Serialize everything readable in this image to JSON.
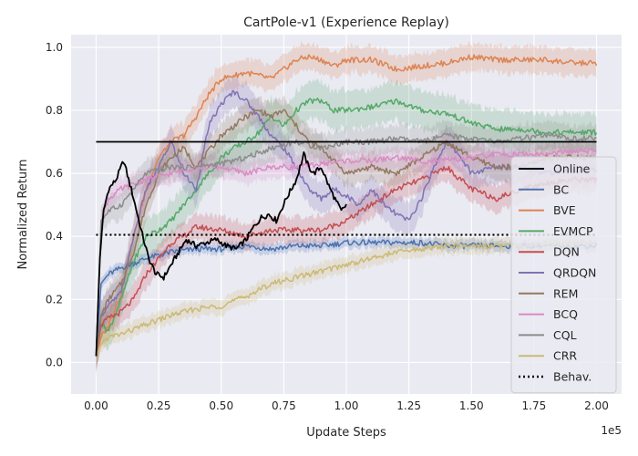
{
  "chart_data": {
    "type": "line",
    "title": "CartPole-v1 (Experience Replay)",
    "xlabel": "Update Steps",
    "ylabel": "Normalized Return",
    "x_offset_label": "1e5",
    "xlim": [
      -10000,
      210000
    ],
    "ylim": [
      -0.1,
      1.04
    ],
    "x_ticks": [
      0,
      25000,
      50000,
      75000,
      100000,
      125000,
      150000,
      175000,
      200000
    ],
    "x_tick_labels": [
      "0.00",
      "0.25",
      "0.50",
      "0.75",
      "1.00",
      "1.25",
      "1.50",
      "1.75",
      "2.00"
    ],
    "y_ticks": [
      0.0,
      0.2,
      0.4,
      0.6,
      0.8,
      1.0
    ],
    "y_tick_labels": [
      "0.0",
      "0.2",
      "0.4",
      "0.6",
      "0.8",
      "1.0"
    ],
    "grid": true,
    "legend_position": "center-right",
    "background": "#eaeaf2",
    "series": [
      {
        "name": "Online",
        "color": "#000000",
        "style": "solid",
        "width": 1.8,
        "hline": 0.7,
        "hline_from": 0,
        "x": [
          0,
          1500,
          3000,
          5000,
          8000,
          11000,
          13000,
          15000,
          18000,
          21000,
          24000,
          27000,
          30000,
          33000,
          36000,
          40000,
          44000,
          48000,
          52000,
          56000,
          60000,
          63000,
          66000,
          69000,
          72000,
          76000,
          80000,
          83000,
          85000,
          87000,
          90000,
          93000,
          96000,
          98000,
          100000
        ],
        "y": [
          0.02,
          0.33,
          0.48,
          0.55,
          0.58,
          0.64,
          0.58,
          0.52,
          0.42,
          0.33,
          0.28,
          0.27,
          0.31,
          0.35,
          0.39,
          0.37,
          0.38,
          0.39,
          0.37,
          0.36,
          0.39,
          0.43,
          0.46,
          0.47,
          0.45,
          0.52,
          0.58,
          0.66,
          0.62,
          0.6,
          0.62,
          0.56,
          0.51,
          0.48,
          0.5
        ]
      },
      {
        "name": "BC",
        "color": "#4c72b0",
        "style": "solid",
        "width": 1.5,
        "band": 0.02,
        "x": [
          0,
          2000,
          5000,
          10000,
          20000,
          30000,
          40000,
          50000,
          60000,
          70000,
          80000,
          90000,
          100000,
          110000,
          120000,
          130000,
          140000,
          150000,
          160000,
          170000,
          180000,
          190000,
          200000
        ],
        "y": [
          0.02,
          0.25,
          0.28,
          0.3,
          0.33,
          0.35,
          0.36,
          0.36,
          0.37,
          0.36,
          0.37,
          0.37,
          0.38,
          0.38,
          0.38,
          0.38,
          0.37,
          0.37,
          0.37,
          0.37,
          0.37,
          0.37,
          0.37
        ]
      },
      {
        "name": "BVE",
        "color": "#dd8452",
        "style": "solid",
        "width": 1.5,
        "band": 0.05,
        "x": [
          0,
          2000,
          5000,
          10000,
          15000,
          20000,
          25000,
          30000,
          35000,
          40000,
          45000,
          50000,
          55000,
          60000,
          65000,
          70000,
          75000,
          80000,
          85000,
          90000,
          95000,
          100000,
          110000,
          120000,
          130000,
          140000,
          150000,
          160000,
          170000,
          180000,
          190000,
          200000
        ],
        "y": [
          0.02,
          0.08,
          0.12,
          0.22,
          0.4,
          0.55,
          0.65,
          0.7,
          0.72,
          0.78,
          0.85,
          0.9,
          0.91,
          0.92,
          0.91,
          0.9,
          0.93,
          0.96,
          0.97,
          0.96,
          0.94,
          0.96,
          0.96,
          0.93,
          0.94,
          0.95,
          0.97,
          0.96,
          0.96,
          0.96,
          0.95,
          0.95
        ]
      },
      {
        "name": "EVMCP",
        "color": "#55a868",
        "style": "solid",
        "width": 1.5,
        "band": 0.07,
        "x": [
          0,
          2000,
          5000,
          10000,
          15000,
          20000,
          25000,
          30000,
          40000,
          50000,
          55000,
          60000,
          65000,
          70000,
          75000,
          80000,
          85000,
          90000,
          95000,
          100000,
          110000,
          120000,
          130000,
          140000,
          150000,
          160000,
          170000,
          180000,
          190000,
          200000
        ],
        "y": [
          0.02,
          0.12,
          0.1,
          0.2,
          0.32,
          0.4,
          0.42,
          0.45,
          0.55,
          0.65,
          0.68,
          0.7,
          0.73,
          0.78,
          0.75,
          0.8,
          0.83,
          0.83,
          0.8,
          0.8,
          0.81,
          0.83,
          0.8,
          0.79,
          0.76,
          0.74,
          0.74,
          0.73,
          0.73,
          0.73
        ]
      },
      {
        "name": "DQN",
        "color": "#c44e52",
        "style": "solid",
        "width": 1.5,
        "band": 0.05,
        "x": [
          0,
          2000,
          5000,
          10000,
          15000,
          20000,
          25000,
          30000,
          35000,
          40000,
          50000,
          60000,
          70000,
          80000,
          90000,
          100000,
          110000,
          120000,
          130000,
          140000,
          150000,
          160000,
          170000,
          180000,
          190000,
          200000
        ],
        "y": [
          0.02,
          0.12,
          0.14,
          0.16,
          0.2,
          0.28,
          0.33,
          0.38,
          0.4,
          0.43,
          0.42,
          0.4,
          0.42,
          0.42,
          0.42,
          0.45,
          0.5,
          0.55,
          0.58,
          0.62,
          0.55,
          0.52,
          0.55,
          0.57,
          0.58,
          0.58
        ]
      },
      {
        "name": "QRDQN",
        "color": "#8172b3",
        "style": "solid",
        "width": 1.5,
        "band": 0.06,
        "x": [
          0,
          2000,
          5000,
          10000,
          15000,
          20000,
          25000,
          30000,
          35000,
          40000,
          45000,
          50000,
          55000,
          60000,
          65000,
          70000,
          75000,
          80000,
          85000,
          90000,
          95000,
          100000,
          105000,
          110000,
          115000,
          120000,
          125000,
          130000,
          135000,
          140000,
          145000,
          150000,
          160000,
          170000,
          180000,
          190000,
          200000
        ],
        "y": [
          0.02,
          0.15,
          0.18,
          0.22,
          0.4,
          0.55,
          0.62,
          0.7,
          0.6,
          0.55,
          0.75,
          0.82,
          0.86,
          0.83,
          0.78,
          0.72,
          0.68,
          0.62,
          0.55,
          0.52,
          0.55,
          0.53,
          0.5,
          0.55,
          0.5,
          0.47,
          0.45,
          0.52,
          0.62,
          0.7,
          0.66,
          0.6,
          0.62,
          0.62,
          0.6,
          0.61,
          0.61
        ]
      },
      {
        "name": "REM",
        "color": "#937860",
        "style": "solid",
        "width": 1.5,
        "band": 0.05,
        "x": [
          0,
          2000,
          5000,
          10000,
          15000,
          20000,
          25000,
          30000,
          35000,
          40000,
          50000,
          60000,
          65000,
          70000,
          75000,
          80000,
          85000,
          90000,
          100000,
          110000,
          120000,
          130000,
          140000,
          150000,
          160000,
          170000,
          180000,
          190000,
          200000
        ],
        "y": [
          0.02,
          0.15,
          0.2,
          0.25,
          0.35,
          0.5,
          0.6,
          0.65,
          0.68,
          0.62,
          0.72,
          0.78,
          0.8,
          0.78,
          0.8,
          0.75,
          0.7,
          0.68,
          0.6,
          0.62,
          0.6,
          0.65,
          0.7,
          0.65,
          0.62,
          0.62,
          0.65,
          0.65,
          0.65
        ]
      },
      {
        "name": "BCQ",
        "color": "#da8bc3",
        "style": "solid",
        "width": 1.5,
        "band": 0.04,
        "x": [
          0,
          2000,
          5000,
          10000,
          20000,
          30000,
          40000,
          50000,
          60000,
          70000,
          80000,
          90000,
          100000,
          110000,
          120000,
          130000,
          140000,
          150000,
          160000,
          170000,
          180000,
          190000,
          200000
        ],
        "y": [
          0.02,
          0.45,
          0.52,
          0.55,
          0.58,
          0.6,
          0.62,
          0.62,
          0.6,
          0.62,
          0.62,
          0.63,
          0.64,
          0.64,
          0.65,
          0.64,
          0.64,
          0.65,
          0.66,
          0.66,
          0.66,
          0.67,
          0.67
        ]
      },
      {
        "name": "CQL",
        "color": "#8c8c8c",
        "style": "solid",
        "width": 1.5,
        "band": 0.05,
        "x": [
          0,
          2000,
          5000,
          10000,
          15000,
          20000,
          30000,
          40000,
          50000,
          60000,
          70000,
          80000,
          90000,
          100000,
          110000,
          120000,
          130000,
          140000,
          150000,
          160000,
          170000,
          180000,
          190000,
          200000
        ],
        "y": [
          0.02,
          0.45,
          0.48,
          0.5,
          0.55,
          0.6,
          0.62,
          0.62,
          0.63,
          0.65,
          0.68,
          0.7,
          0.68,
          0.7,
          0.7,
          0.71,
          0.7,
          0.72,
          0.71,
          0.7,
          0.71,
          0.72,
          0.71,
          0.71
        ]
      },
      {
        "name": "CRR",
        "color": "#ccb974",
        "style": "solid",
        "width": 1.5,
        "band": 0.03,
        "x": [
          0,
          2000,
          5000,
          10000,
          20000,
          30000,
          40000,
          50000,
          60000,
          70000,
          80000,
          90000,
          100000,
          110000,
          120000,
          130000,
          140000,
          150000,
          160000,
          170000,
          180000,
          190000,
          200000
        ],
        "y": [
          0.02,
          0.06,
          0.08,
          0.09,
          0.12,
          0.15,
          0.17,
          0.18,
          0.21,
          0.25,
          0.27,
          0.29,
          0.31,
          0.33,
          0.35,
          0.36,
          0.37,
          0.37,
          0.37,
          0.37,
          0.38,
          0.38,
          0.38
        ]
      },
      {
        "name": "Behav.",
        "color": "#000000",
        "style": "dotted",
        "width": 2.2,
        "hline": 0.405,
        "hline_from": 0
      }
    ]
  }
}
